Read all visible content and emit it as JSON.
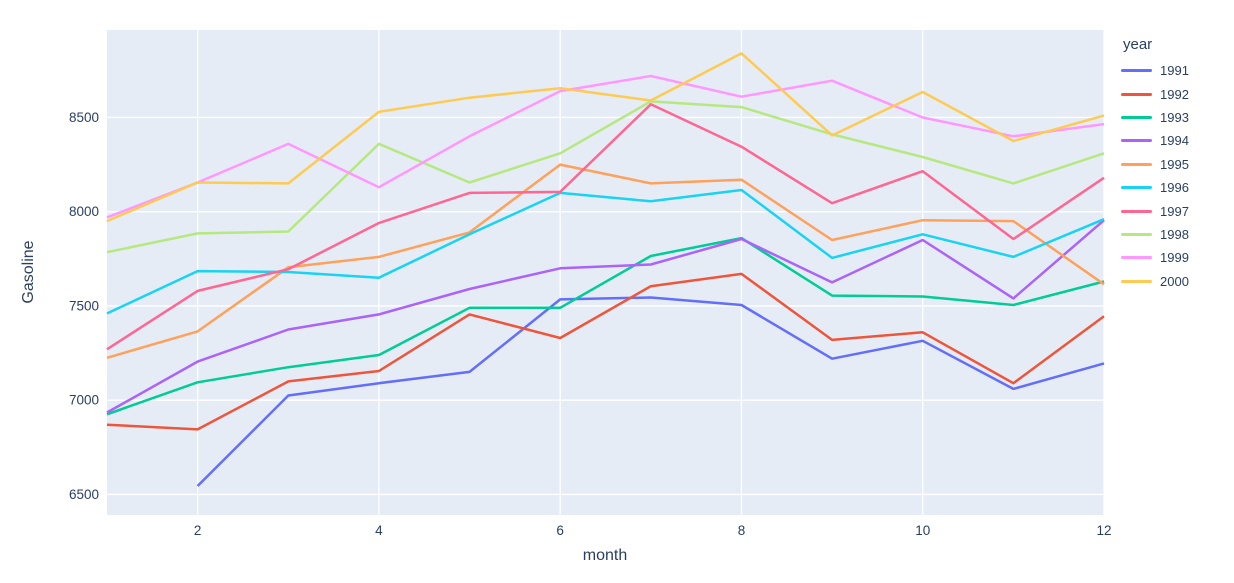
{
  "chart_data": {
    "type": "line",
    "title": "",
    "xlabel": "month",
    "ylabel": "Gasoline",
    "legend_title": "year",
    "legend_position": "right",
    "grid": true,
    "xlim": [
      1,
      12
    ],
    "ylim": [
      6391,
      8964
    ],
    "x_ticks": [
      2,
      4,
      6,
      8,
      10,
      12
    ],
    "y_ticks": [
      6500,
      7000,
      7500,
      8000,
      8500
    ],
    "x": [
      1,
      2,
      3,
      4,
      5,
      6,
      7,
      8,
      9,
      10,
      11,
      12
    ],
    "series": [
      {
        "name": "1991",
        "color": "#636efa",
        "values": [
          null,
          6545,
          7025,
          7090,
          7150,
          7535,
          7545,
          7505,
          7220,
          7315,
          7060,
          7195
        ]
      },
      {
        "name": "1992",
        "color": "#ef553b",
        "values": [
          6870,
          6845,
          7100,
          7155,
          7455,
          7330,
          7605,
          7670,
          7320,
          7360,
          7090,
          7445
        ]
      },
      {
        "name": "1993",
        "color": "#00cc96",
        "values": [
          6925,
          7095,
          7175,
          7240,
          7490,
          7490,
          7765,
          7860,
          7555,
          7550,
          7505,
          7630
        ]
      },
      {
        "name": "1994",
        "color": "#ab63fa",
        "values": [
          6935,
          7205,
          7375,
          7455,
          7590,
          7700,
          7720,
          7855,
          7625,
          7850,
          7540,
          7955
        ]
      },
      {
        "name": "1995",
        "color": "#ffa15a",
        "values": [
          7225,
          7365,
          7705,
          7760,
          7890,
          8250,
          8150,
          8170,
          7850,
          7955,
          7950,
          7615
        ]
      },
      {
        "name": "1996",
        "color": "#19d3f3",
        "values": [
          7460,
          7685,
          7680,
          7650,
          7880,
          8100,
          8055,
          8115,
          7755,
          7880,
          7760,
          7960
        ]
      },
      {
        "name": "1997",
        "color": "#ff6692",
        "values": [
          7270,
          7580,
          7695,
          7940,
          8100,
          8105,
          8570,
          8345,
          8045,
          8215,
          7855,
          8180
        ]
      },
      {
        "name": "1998",
        "color": "#b6e880",
        "values": [
          7785,
          7885,
          7895,
          8360,
          8155,
          8310,
          8585,
          8555,
          8410,
          8290,
          8150,
          8310
        ]
      },
      {
        "name": "1999",
        "color": "#ff97ff",
        "values": [
          7970,
          8155,
          8360,
          8130,
          8400,
          8640,
          8720,
          8610,
          8695,
          8500,
          8400,
          8465
        ]
      },
      {
        "name": "2000",
        "color": "#fecb52",
        "values": [
          7950,
          8155,
          8150,
          8530,
          8605,
          8655,
          8590,
          8840,
          8405,
          8635,
          8375,
          8510
        ]
      }
    ],
    "colors": {
      "plot_bg": "#e5ecf6",
      "grid": "#ffffff",
      "text": "#2a3f5f",
      "paper": "#ffffff"
    }
  }
}
